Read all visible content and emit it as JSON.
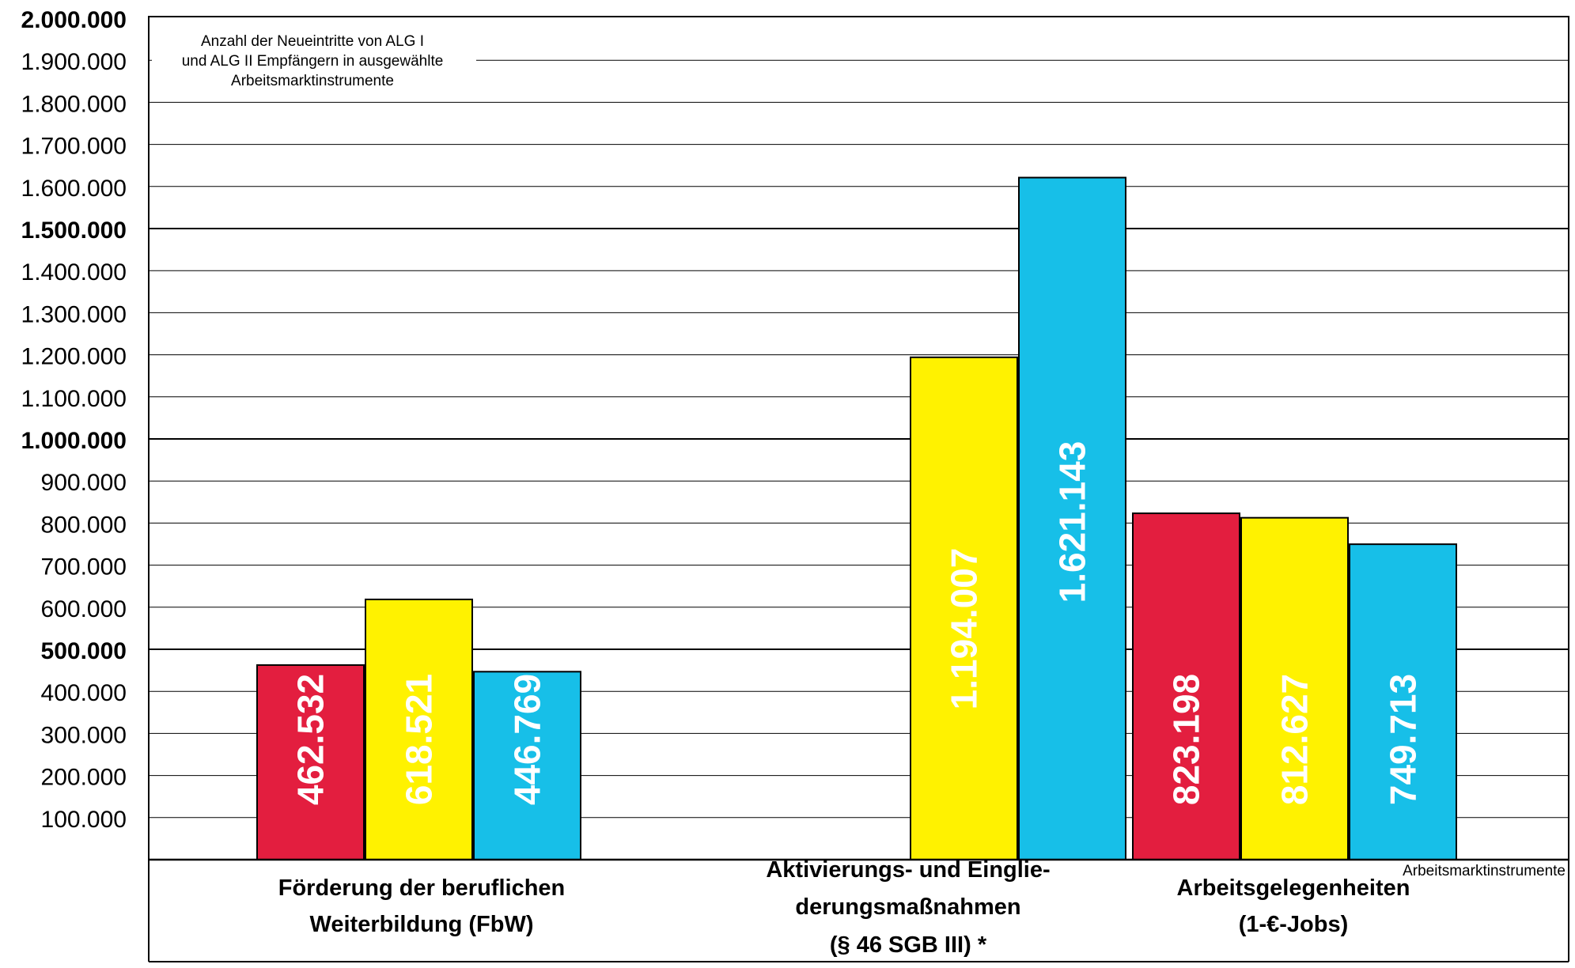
{
  "chart_data": {
    "type": "bar",
    "title": "",
    "annotation": [
      "Anzahl der Neueintritte von ALG I",
      "und ALG II Empfängern in ausgewählte",
      "Arbeitsmarktinstrumente"
    ],
    "xlabel": "Arbeitsmarktinstrumente",
    "ylabel": "",
    "ylim": [
      0,
      2000000
    ],
    "yticks": [
      {
        "value": 100000,
        "label": "100.000",
        "bold": false
      },
      {
        "value": 200000,
        "label": "200.000",
        "bold": false
      },
      {
        "value": 300000,
        "label": "300.000",
        "bold": false
      },
      {
        "value": 400000,
        "label": "400.000",
        "bold": false
      },
      {
        "value": 500000,
        "label": "500.000",
        "bold": true
      },
      {
        "value": 600000,
        "label": "600.000",
        "bold": false
      },
      {
        "value": 700000,
        "label": "700.000",
        "bold": false
      },
      {
        "value": 800000,
        "label": "800.000",
        "bold": false
      },
      {
        "value": 900000,
        "label": "900.000",
        "bold": false
      },
      {
        "value": 1000000,
        "label": "1.000.000",
        "bold": true
      },
      {
        "value": 1100000,
        "label": "1.100.000",
        "bold": false
      },
      {
        "value": 1200000,
        "label": "1.200.000",
        "bold": false
      },
      {
        "value": 1300000,
        "label": "1.300.000",
        "bold": false
      },
      {
        "value": 1400000,
        "label": "1.400.000",
        "bold": false
      },
      {
        "value": 1500000,
        "label": "1.500.000",
        "bold": true
      },
      {
        "value": 1600000,
        "label": "1.600.000",
        "bold": false
      },
      {
        "value": 1700000,
        "label": "1.700.000",
        "bold": false
      },
      {
        "value": 1800000,
        "label": "1.800.000",
        "bold": false
      },
      {
        "value": 1900000,
        "label": "1.900.000",
        "bold": false
      },
      {
        "value": 2000000,
        "label": "2.000.000",
        "bold": true
      }
    ],
    "grid": true,
    "categories": [
      {
        "lines": [
          "Förderung der beruflichen",
          "Weiterbildung (FbW)"
        ]
      },
      {
        "lines": [
          "Aktivierungs- und Einglie-",
          "derungsmaßnahmen",
          "(§ 46 SGB III)  *"
        ]
      },
      {
        "lines": [
          "Arbeitsgelegenheiten",
          "(1-€-Jobs)"
        ]
      }
    ],
    "series": [
      {
        "color": "#e31e3f",
        "values": [
          462532,
          null,
          823198
        ],
        "labels": [
          "462.532",
          "",
          "823.198"
        ]
      },
      {
        "color": "#fff200",
        "values": [
          618521,
          1194007,
          812627
        ],
        "labels": [
          "618.521",
          "1.194.007",
          "812.627"
        ]
      },
      {
        "color": "#17bfe8",
        "values": [
          446769,
          1621143,
          749713
        ],
        "labels": [
          "446.769",
          "1.621.143",
          "749.713"
        ]
      }
    ]
  }
}
